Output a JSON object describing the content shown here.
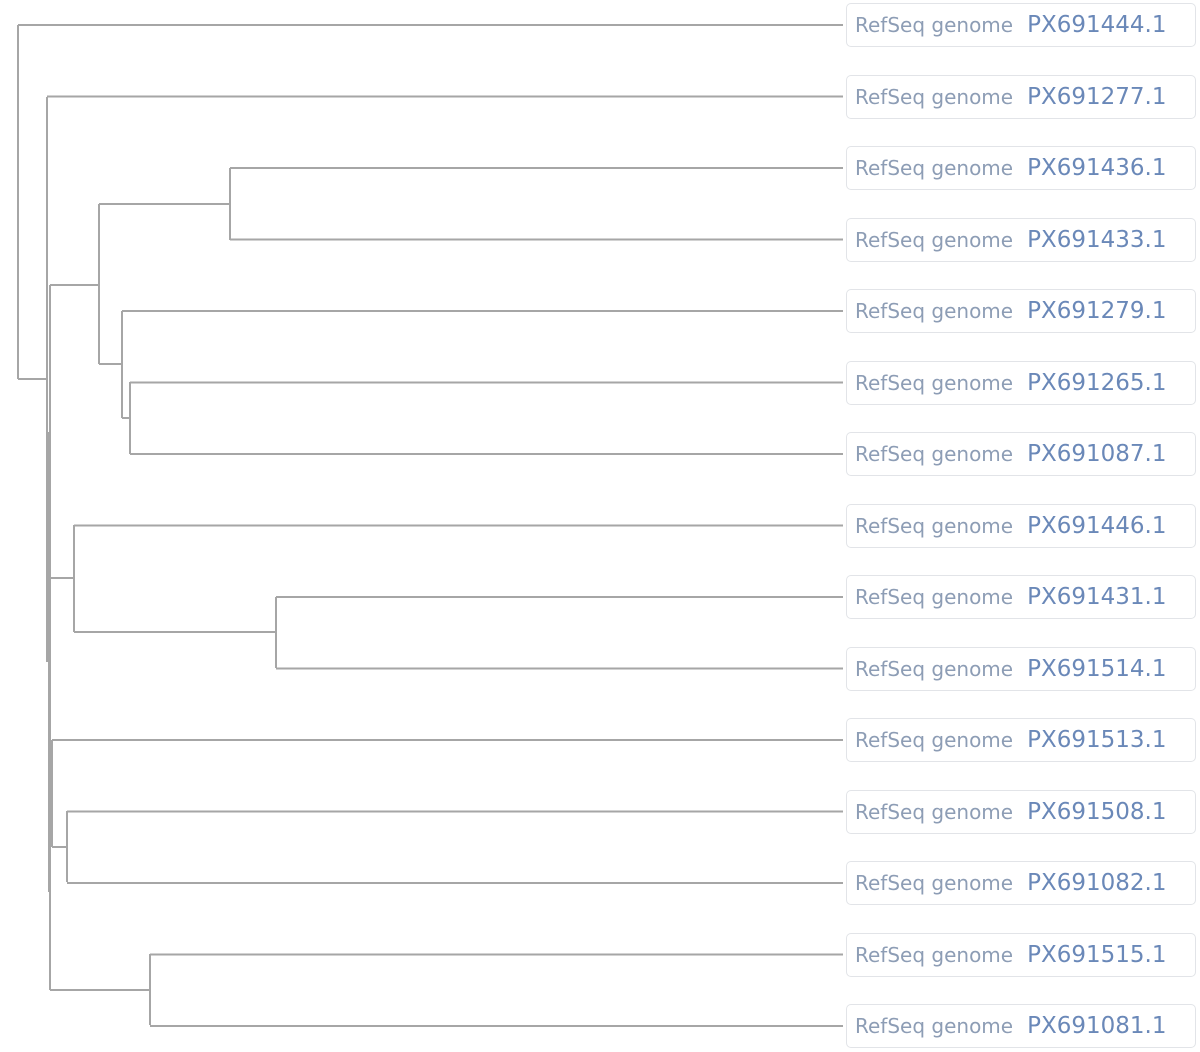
{
  "tree": {
    "branch_color": "#a6a6a6",
    "label_source_color": "#8d9db5",
    "label_accession_color": "#6a88b8",
    "leaves": [
      {
        "source": "RefSeq genome",
        "accession": "PX691444.1"
      },
      {
        "source": "RefSeq genome",
        "accession": "PX691277.1"
      },
      {
        "source": "RefSeq genome",
        "accession": "PX691436.1"
      },
      {
        "source": "RefSeq genome",
        "accession": "PX691433.1"
      },
      {
        "source": "RefSeq genome",
        "accession": "PX691279.1"
      },
      {
        "source": "RefSeq genome",
        "accession": "PX691265.1"
      },
      {
        "source": "RefSeq genome",
        "accession": "PX691087.1"
      },
      {
        "source": "RefSeq genome",
        "accession": "PX691446.1"
      },
      {
        "source": "RefSeq genome",
        "accession": "PX691431.1"
      },
      {
        "source": "RefSeq genome",
        "accession": "PX691514.1"
      },
      {
        "source": "RefSeq genome",
        "accession": "PX691513.1"
      },
      {
        "source": "RefSeq genome",
        "accession": "PX691508.1"
      },
      {
        "source": "RefSeq genome",
        "accession": "PX691082.1"
      },
      {
        "source": "RefSeq genome",
        "accession": "PX691515.1"
      },
      {
        "source": "RefSeq genome",
        "accession": "PX691081.1"
      }
    ]
  }
}
